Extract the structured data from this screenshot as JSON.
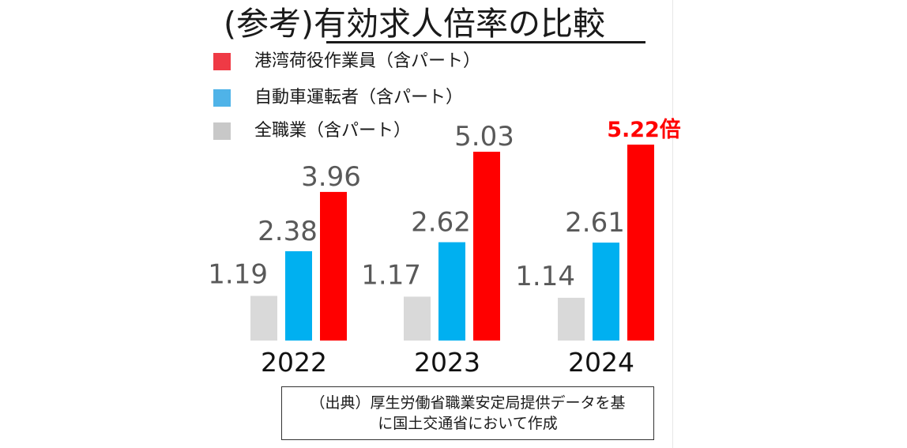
{
  "title": "(参考)有効求人倍率の比較",
  "legend": [
    {
      "label": "港湾荷役作業員（含パート）",
      "color": "#ef3a45"
    },
    {
      "label": "自動車運転者（含パート）",
      "color": "#4fb3e8"
    },
    {
      "label": "全職業（含パート）",
      "color": "#c8c8c8"
    }
  ],
  "chart_data": {
    "type": "bar",
    "title": "(参考)有効求人倍率の比較",
    "categories": [
      "2022",
      "2023",
      "2024"
    ],
    "series": [
      {
        "name": "全職業（含パート）",
        "values": [
          1.19,
          1.17,
          1.14
        ],
        "labels": [
          "1.19",
          "1.17",
          "1.14"
        ],
        "color": "#d9d9d9"
      },
      {
        "name": "自動車運転者（含パート）",
        "values": [
          2.38,
          2.62,
          2.61
        ],
        "labels": [
          "2.38",
          "2.62",
          "2.61"
        ],
        "color": "#00b0f0"
      },
      {
        "name": "港湾荷役作業員（含パート）",
        "values": [
          3.96,
          5.03,
          5.22
        ],
        "labels": [
          "3.96",
          "5.03",
          "5.22倍"
        ],
        "color": "#ff0000"
      }
    ],
    "highlight_label": {
      "category": "2024",
      "series": "港湾荷役作業員（含パート）",
      "text": "5.22倍",
      "color": "#ff0000"
    },
    "xlabel": "",
    "ylabel": "",
    "ylim": [
      0,
      5.5
    ],
    "grid": false,
    "legend_position": "top-left"
  },
  "source": {
    "line1": "（出典）厚生労働省職業安定局提供データを基",
    "line2": "に国土交通省において作成"
  }
}
